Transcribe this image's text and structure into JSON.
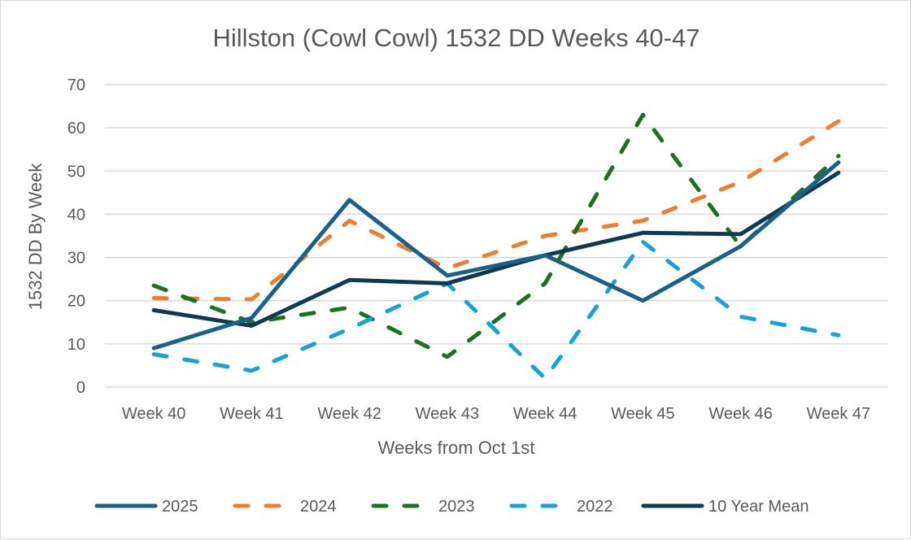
{
  "chart_data": {
    "type": "line",
    "title": "Hillston (Cowl Cowl) 1532 DD Weeks 40-47",
    "xlabel": "Weeks from Oct 1st",
    "ylabel": "1532 DD By Week",
    "ylim": [
      0,
      70
    ],
    "yticks": [
      0,
      10,
      20,
      30,
      40,
      50,
      60,
      70
    ],
    "grid": "horizontal",
    "legend": "bottom",
    "categories": [
      "Week 40",
      "Week 41",
      "Week 42",
      "Week 43",
      "Week 44",
      "Week 45",
      "Week 46",
      "Week 47"
    ],
    "series": [
      {
        "name": "2025",
        "color": "#1b6185",
        "dash": "solid",
        "values": [
          9,
          16,
          43.3,
          25.8,
          30.5,
          20,
          32.6,
          52
        ]
      },
      {
        "name": "2024",
        "color": "#ed7d31",
        "dash": "dashed",
        "values": [
          20.6,
          20.3,
          38.5,
          27.5,
          35,
          38.5,
          47.5,
          61.5
        ]
      },
      {
        "name": "2023",
        "color": "#1e6e23",
        "dash": "dashed",
        "values": [
          23.5,
          15,
          18.4,
          7,
          24,
          63,
          32.5,
          53.5
        ]
      },
      {
        "name": "2022",
        "color": "#16a1d9",
        "dash": "dashed",
        "values": [
          7.6,
          3.8,
          13.5,
          24,
          2,
          33.6,
          16.3,
          12
        ]
      },
      {
        "name": "10 Year Mean",
        "color": "#0e3a52",
        "dash": "solid",
        "values": [
          17.8,
          14.2,
          24.8,
          24,
          30.5,
          35.7,
          35.4,
          49.6
        ]
      }
    ]
  }
}
